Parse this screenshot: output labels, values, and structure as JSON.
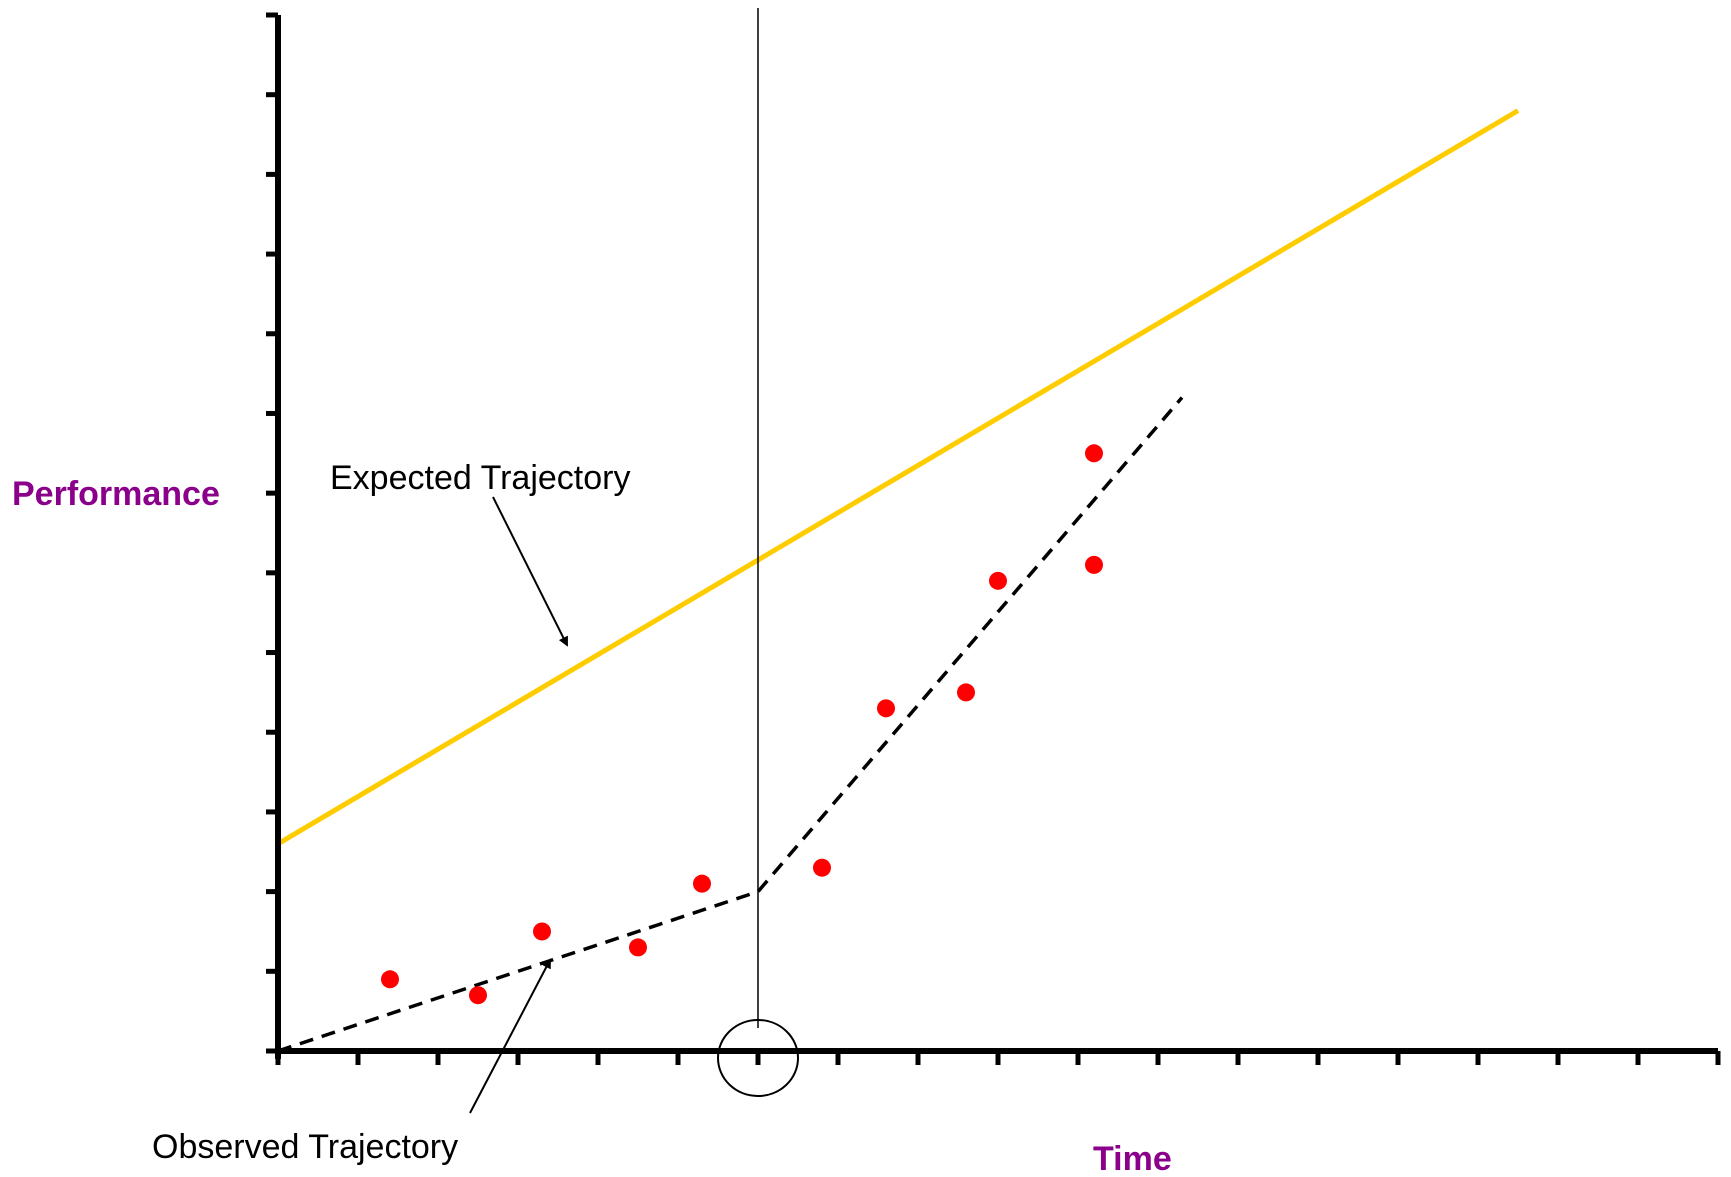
{
  "chart_data": {
    "type": "scatter",
    "title": "",
    "xlabel": "Time",
    "ylabel": "Performance",
    "axis_label_color": "#8B008B",
    "xlim": [
      0,
      18
    ],
    "ylim": [
      0,
      13
    ],
    "x_ticks": [
      0,
      1,
      2,
      3,
      4,
      5,
      6,
      7,
      8,
      9,
      10,
      11,
      12,
      13,
      14,
      15,
      16,
      17,
      18
    ],
    "y_ticks": [
      0,
      1,
      2,
      3,
      4,
      5,
      6,
      7,
      8,
      9,
      10,
      11,
      12,
      13
    ],
    "tick_labels_shown": false,
    "grid": false,
    "intervention_x": 6,
    "series": [
      {
        "kind": "points",
        "color": "#FF0000",
        "points": [
          {
            "x": 1.4,
            "y": 0.9
          },
          {
            "x": 2.5,
            "y": 0.7
          },
          {
            "x": 3.3,
            "y": 1.5
          },
          {
            "x": 4.5,
            "y": 1.3
          },
          {
            "x": 5.3,
            "y": 2.1
          },
          {
            "x": 6.8,
            "y": 2.3
          },
          {
            "x": 7.6,
            "y": 4.3
          },
          {
            "x": 8.6,
            "y": 4.5
          },
          {
            "x": 9.0,
            "y": 5.9
          },
          {
            "x": 10.2,
            "y": 6.1
          },
          {
            "x": 10.2,
            "y": 7.5
          }
        ]
      },
      {
        "name": "Observed Trajectory",
        "kind": "dashed-line",
        "color": "#000000",
        "points": [
          {
            "x": 0,
            "y": 0
          },
          {
            "x": 6,
            "y": 2.0
          },
          {
            "x": 11.3,
            "y": 8.2
          }
        ]
      },
      {
        "name": "Expected Trajectory",
        "kind": "line",
        "color": "#FFCC00",
        "points": [
          {
            "x": 0,
            "y": 2.6
          },
          {
            "x": 15.5,
            "y": 11.8
          }
        ]
      }
    ],
    "annotations": [
      {
        "label": "Expected Trajectory",
        "points_to": "Expected Trajectory"
      },
      {
        "label": "Observed Trajectory",
        "points_to": "Observed Trajectory"
      }
    ]
  }
}
